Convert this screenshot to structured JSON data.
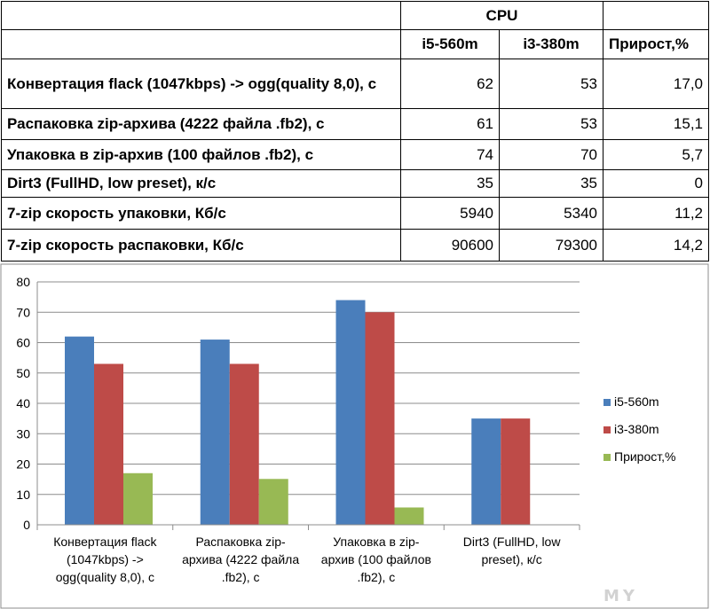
{
  "table": {
    "header_group": "CPU",
    "col_headers": [
      "i5-560m",
      "i3-380m",
      "Прирост,%"
    ],
    "rows": [
      {
        "label": "Конвертация flack (1047kbps) -> ogg(quality 8,0), с",
        "v1": "62",
        "v2": "53",
        "v3": "17,0"
      },
      {
        "label": "Распаковка zip-архива (4222 файла .fb2), с",
        "v1": "61",
        "v2": "53",
        "v3": "15,1"
      },
      {
        "label": "Упаковка в zip-архив (100 файлов .fb2), с",
        "v1": "74",
        "v2": "70",
        "v3": "5,7"
      },
      {
        "label": "Dirt3 (FullHD, low preset), к/с",
        "v1": "35",
        "v2": "35",
        "v3": "0"
      },
      {
        "label": "7-zip скорость упаковки, Кб/с",
        "v1": "5940",
        "v2": "5340",
        "v3": "11,2"
      },
      {
        "label": "7-zip скорость распаковки, Кб/с",
        "v1": "90600",
        "v2": "79300",
        "v3": "14,2"
      }
    ]
  },
  "chart_data": {
    "type": "bar",
    "categories": [
      [
        "Конвертация flack",
        "(1047kbps) ->",
        "ogg(quality 8,0), с"
      ],
      [
        "Распаковка zip-",
        "архива (4222 файла",
        ".fb2), с"
      ],
      [
        "Упаковка в zip-",
        "архив (100 файлов",
        ".fb2), с"
      ],
      [
        "Dirt3 (FullHD, low",
        "preset), к/с"
      ]
    ],
    "series": [
      {
        "name": "i5-560m",
        "values": [
          62,
          61,
          74,
          35
        ],
        "color": "#4a7ebb"
      },
      {
        "name": "i3-380m",
        "values": [
          53,
          53,
          70,
          35
        ],
        "color": "#be4b48"
      },
      {
        "name": "Прирост,%",
        "values": [
          17.0,
          15.1,
          5.7,
          0
        ],
        "color": "#98b954"
      }
    ],
    "yticks": [
      "0",
      "10",
      "20",
      "30",
      "40",
      "50",
      "60",
      "70",
      "80"
    ],
    "ylim": [
      0,
      80
    ],
    "grid": true,
    "legend_position": "right"
  },
  "watermark": {
    "text": "MY"
  }
}
